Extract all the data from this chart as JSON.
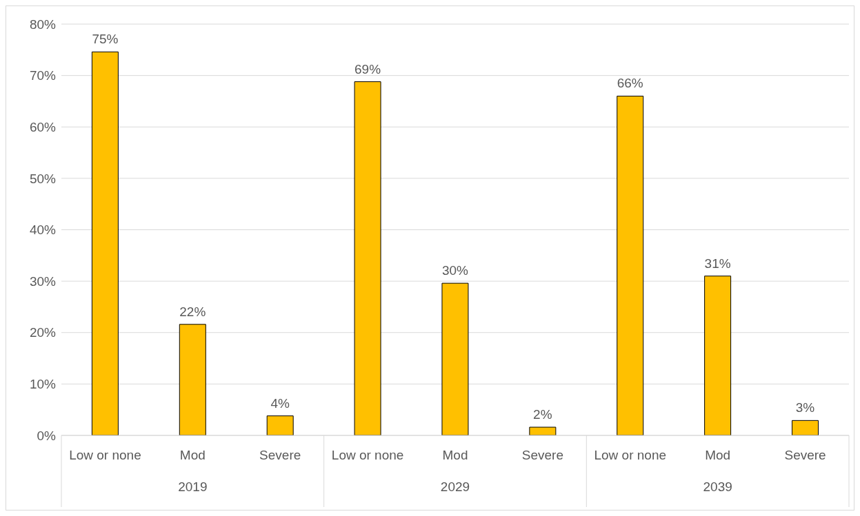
{
  "chart_data": {
    "type": "bar",
    "categories": [
      "Low or none",
      "Mod",
      "Severe",
      "Low or none",
      "Mod",
      "Severe",
      "Low or none",
      "Mod",
      "Severe"
    ],
    "values": [
      74.6,
      21.6,
      3.8,
      68.8,
      29.6,
      1.6,
      66,
      31,
      2.9
    ],
    "value_labels": [
      "75%",
      "22%",
      "4%",
      "69%",
      "30%",
      "2%",
      "66%",
      "31%",
      "3%"
    ],
    "color": "#ffc000",
    "ylim": [
      0,
      80
    ],
    "yticks": [
      {
        "value": 0,
        "label": "0%"
      },
      {
        "value": 10,
        "label": "10%"
      },
      {
        "value": 20,
        "label": "20%"
      },
      {
        "value": 30,
        "label": "30%"
      },
      {
        "value": 40,
        "label": "40%"
      },
      {
        "value": 50,
        "label": "50%"
      },
      {
        "value": 60,
        "label": "60%"
      },
      {
        "value": 70,
        "label": "70%"
      },
      {
        "value": 80,
        "label": "80%"
      }
    ],
    "grid": "y",
    "annotations": [
      "2019",
      "2029",
      "2039"
    ]
  }
}
